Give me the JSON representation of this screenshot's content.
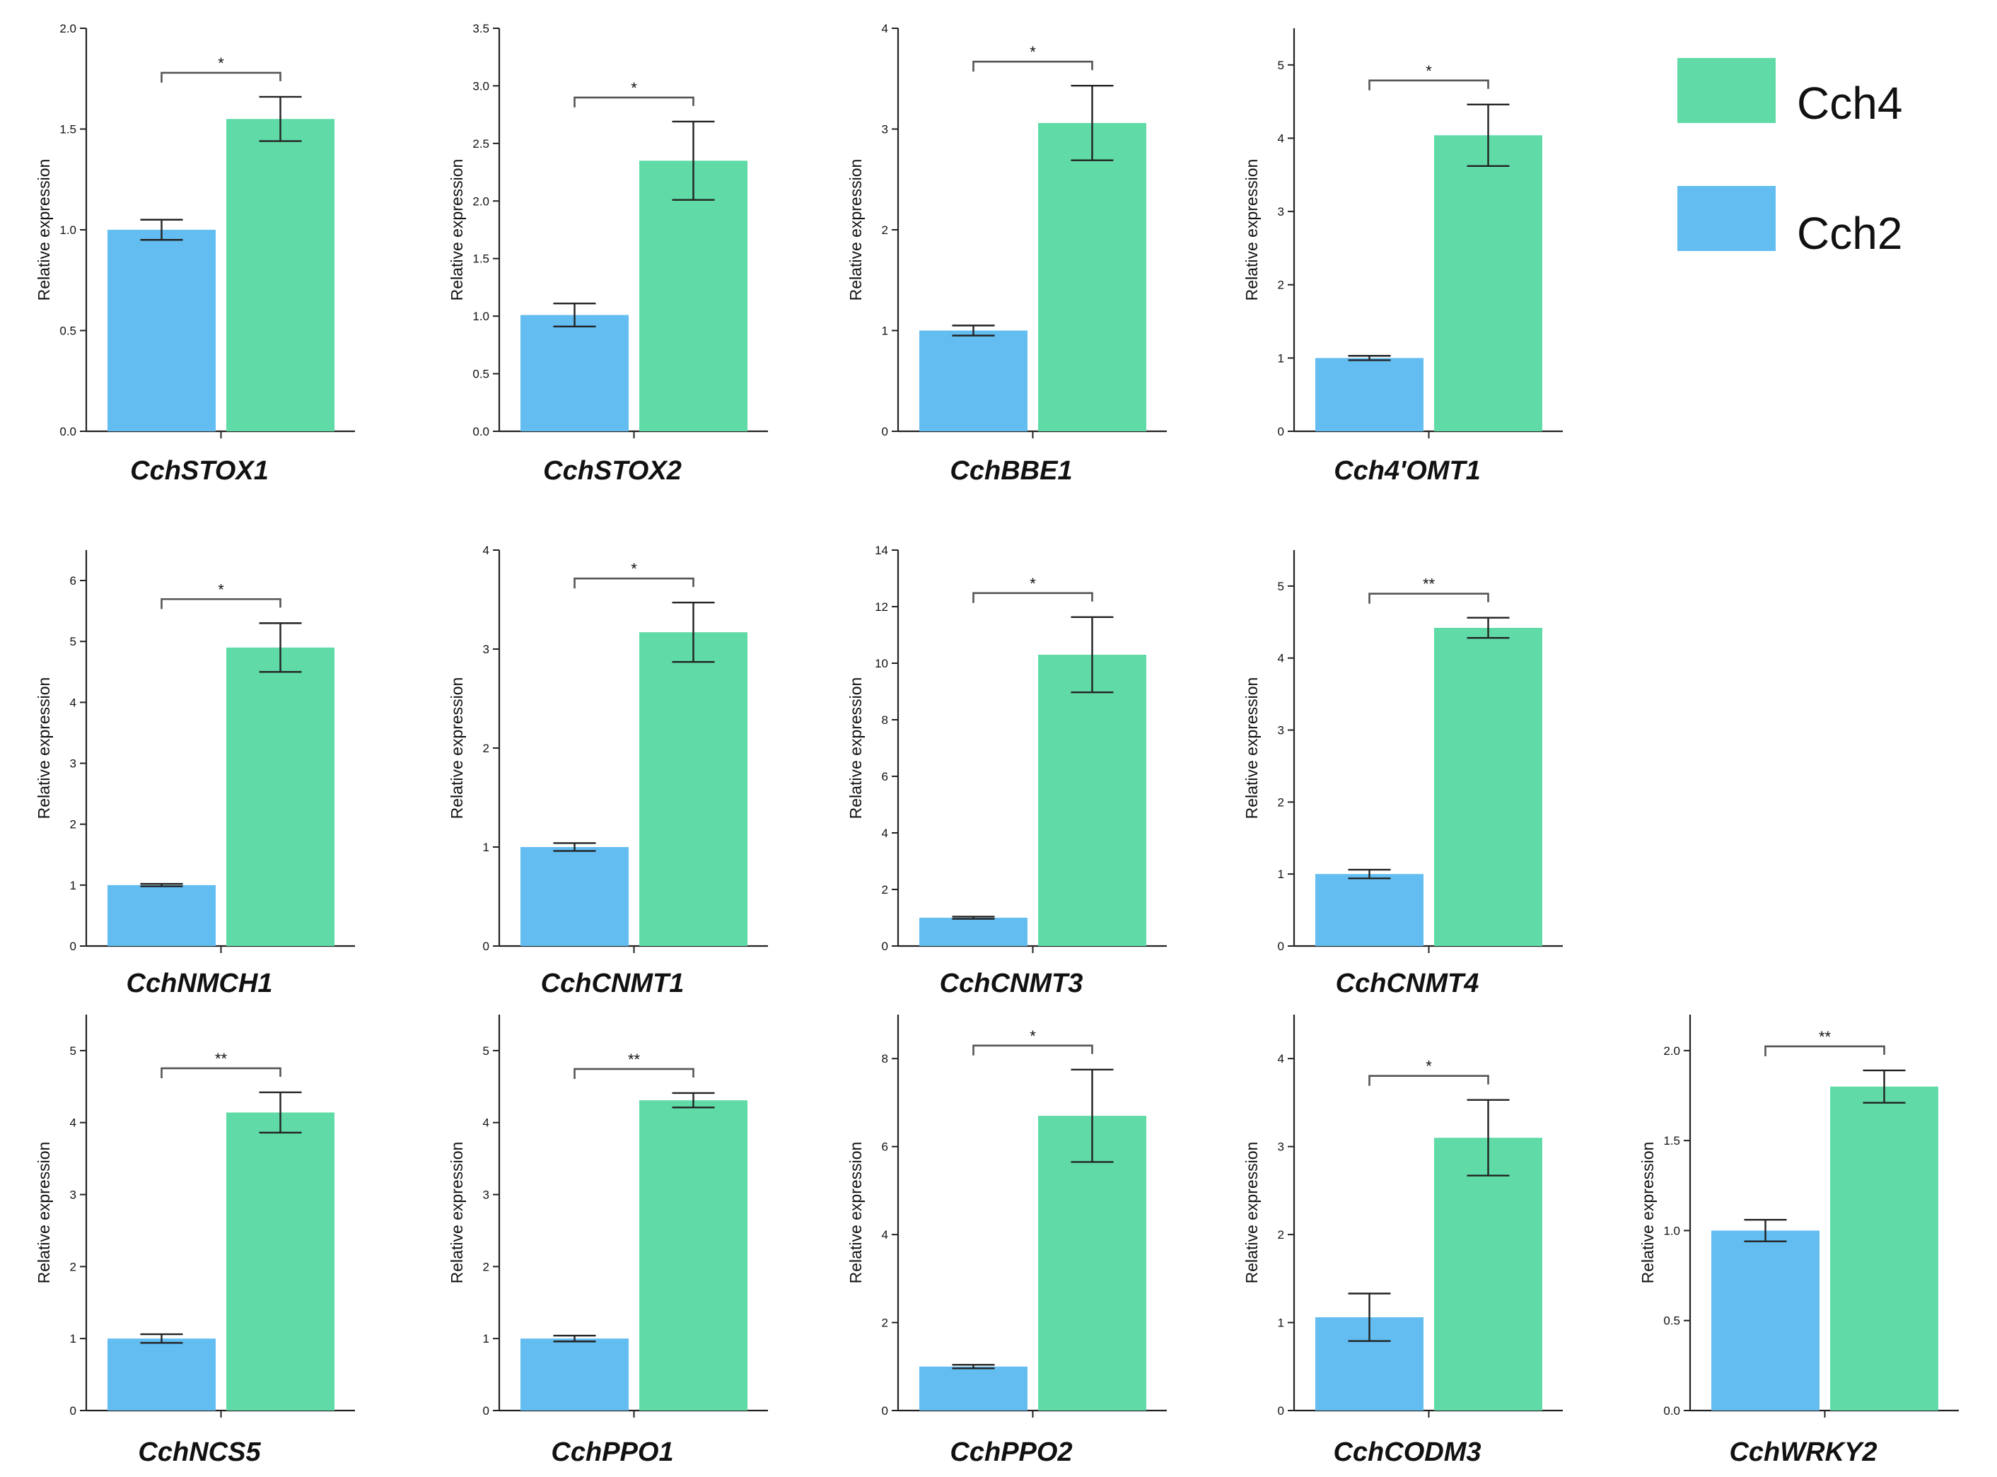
{
  "chart_data": {
    "type": "bar",
    "layout": "small-multiples",
    "ylabel": "Relative expression",
    "series_names": [
      "Cch2",
      "Cch4"
    ],
    "colors": {
      "Cch2": "#63bdf1",
      "Cch4": "#60dba8"
    },
    "legend": {
      "position": "top-right",
      "entries": [
        {
          "label": "Cch4",
          "color": "#60dba8"
        },
        {
          "label": "Cch2",
          "color": "#63bdf1"
        }
      ]
    },
    "panels": [
      {
        "gene": "CchSTOX1",
        "ylim": [
          0,
          2.0
        ],
        "ticks": [
          "0.0",
          "0.5",
          "1.0",
          "1.5",
          "2.0"
        ],
        "Cch2": {
          "value": 1.0,
          "error": 0.05
        },
        "Cch4": {
          "value": 1.55,
          "error": 0.11
        },
        "significance": "*"
      },
      {
        "gene": "CchSTOX2",
        "ylim": [
          0,
          3.5
        ],
        "ticks": [
          "0.0",
          "0.5",
          "1.0",
          "1.5",
          "2.0",
          "2.5",
          "3.0",
          "3.5"
        ],
        "Cch2": {
          "value": 1.01,
          "error": 0.1
        },
        "Cch4": {
          "value": 2.35,
          "error": 0.34
        },
        "significance": "*"
      },
      {
        "gene": "CchBBE1",
        "ylim": [
          0,
          4
        ],
        "ticks": [
          "0",
          "1",
          "2",
          "3",
          "4"
        ],
        "Cch2": {
          "value": 1.0,
          "error": 0.05
        },
        "Cch4": {
          "value": 3.06,
          "error": 0.37
        },
        "significance": "*"
      },
      {
        "gene": "Cch4'OMT1",
        "ylim": [
          0,
          5.5
        ],
        "ticks": [
          "0",
          "1",
          "2",
          "3",
          "4",
          "5"
        ],
        "Cch2": {
          "value": 1.0,
          "error": 0.03
        },
        "Cch4": {
          "value": 4.04,
          "error": 0.42
        },
        "significance": "*"
      },
      {
        "gene": "CchNMCH1",
        "ylim": [
          0,
          6.5
        ],
        "ticks": [
          "0",
          "1",
          "2",
          "3",
          "4",
          "5",
          "6"
        ],
        "Cch2": {
          "value": 1.0,
          "error": 0.02
        },
        "Cch4": {
          "value": 4.9,
          "error": 0.4
        },
        "significance": "*"
      },
      {
        "gene": "CchCNMT1",
        "ylim": [
          0,
          4
        ],
        "ticks": [
          "0",
          "1",
          "2",
          "3",
          "4"
        ],
        "Cch2": {
          "value": 1.0,
          "error": 0.04
        },
        "Cch4": {
          "value": 3.17,
          "error": 0.3
        },
        "significance": "*"
      },
      {
        "gene": "CchCNMT3",
        "ylim": [
          0,
          14
        ],
        "ticks": [
          "0",
          "2",
          "4",
          "6",
          "8",
          "10",
          "12",
          "14"
        ],
        "Cch2": {
          "value": 1.0,
          "error": 0.04
        },
        "Cch4": {
          "value": 10.3,
          "error": 1.33
        },
        "significance": "*"
      },
      {
        "gene": "CchCNMT4",
        "ylim": [
          0,
          5.5
        ],
        "ticks": [
          "0",
          "1",
          "2",
          "3",
          "4",
          "5"
        ],
        "Cch2": {
          "value": 1.0,
          "error": 0.06
        },
        "Cch4": {
          "value": 4.42,
          "error": 0.14
        },
        "significance": "**"
      },
      {
        "gene": "CchNCS5",
        "ylim": [
          0,
          5.5
        ],
        "ticks": [
          "0",
          "1",
          "2",
          "3",
          "4",
          "5"
        ],
        "Cch2": {
          "value": 1.0,
          "error": 0.06
        },
        "Cch4": {
          "value": 4.14,
          "error": 0.28
        },
        "significance": "**"
      },
      {
        "gene": "CchPPO1",
        "ylim": [
          0,
          5.5
        ],
        "ticks": [
          "0",
          "1",
          "2",
          "3",
          "4",
          "5"
        ],
        "Cch2": {
          "value": 1.0,
          "error": 0.04
        },
        "Cch4": {
          "value": 4.31,
          "error": 0.1
        },
        "significance": "**"
      },
      {
        "gene": "CchPPO2",
        "ylim": [
          0,
          9
        ],
        "ticks": [
          "0",
          "2",
          "4",
          "6",
          "8"
        ],
        "Cch2": {
          "value": 1.0,
          "error": 0.04
        },
        "Cch4": {
          "value": 6.7,
          "error": 1.05
        },
        "significance": "*"
      },
      {
        "gene": "CchCODM3",
        "ylim": [
          0,
          4.5
        ],
        "ticks": [
          "0",
          "1",
          "2",
          "3",
          "4"
        ],
        "Cch2": {
          "value": 1.06,
          "error": 0.27
        },
        "Cch4": {
          "value": 3.1,
          "error": 0.43
        },
        "significance": "*"
      },
      {
        "gene": "CchWRKY2",
        "ylim": [
          0,
          2.2
        ],
        "ticks": [
          "0.0",
          "0.5",
          "1.0",
          "1.5",
          "2.0"
        ],
        "Cch2": {
          "value": 1.0,
          "error": 0.06
        },
        "Cch4": {
          "value": 1.8,
          "error": 0.09
        },
        "significance": "**"
      }
    ]
  }
}
